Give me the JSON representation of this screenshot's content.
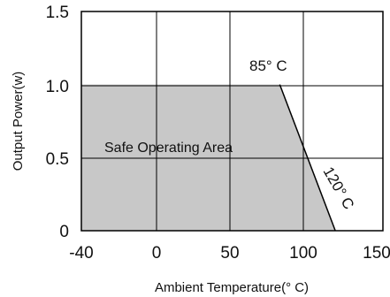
{
  "chart_data": {
    "type": "area",
    "title": "",
    "xlabel": "Ambient Temperature(° C)",
    "ylabel": "Output Power(w)",
    "xlim": [
      -40,
      150
    ],
    "ylim": [
      0,
      1.5
    ],
    "x_ticks": [
      "-40",
      "0",
      "50",
      "100",
      "150"
    ],
    "y_ticks": [
      "0",
      "0.5",
      "1.0",
      "1.5"
    ],
    "grid": true,
    "series": [
      {
        "x": [
          -40,
          85,
          120
        ],
        "y": [
          1.0,
          1.0,
          0
        ]
      }
    ],
    "area_label": "Safe Operating Area",
    "area_color": "#c8c8c8",
    "annotations": [
      {
        "text": "85° C",
        "x": 85,
        "y": 1.0
      },
      {
        "text": "120° C",
        "x": 120,
        "y": 0
      }
    ]
  }
}
